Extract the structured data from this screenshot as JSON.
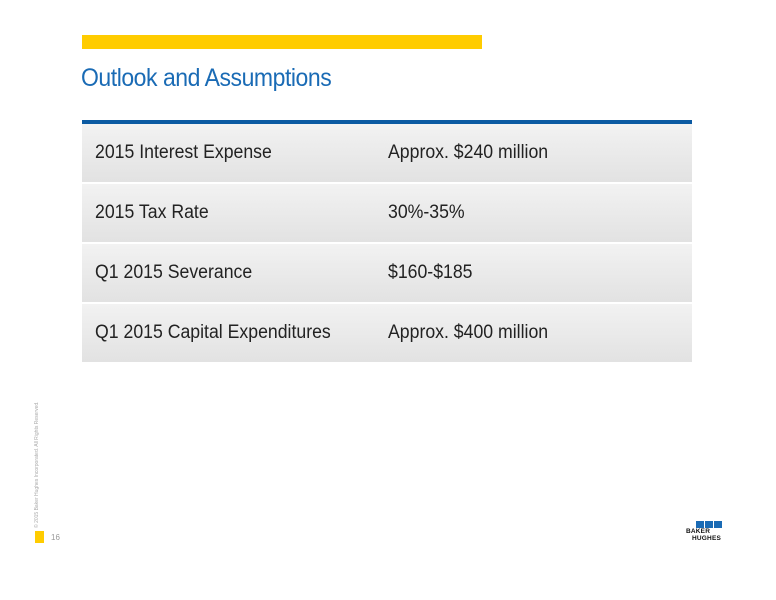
{
  "slide": {
    "title": "Outlook and Assumptions",
    "page_number": "16",
    "copyright": "© 2015 Baker Hughes Incorporated. All Rights Reserved."
  },
  "table": {
    "rows": [
      {
        "label": "2015 Interest Expense",
        "value": "Approx. $240 million"
      },
      {
        "label": "2015 Tax Rate",
        "value": "30%-35%"
      },
      {
        "label": "Q1 2015 Severance",
        "value": "$160-$185"
      },
      {
        "label": "Q1 2015 Capital Expenditures",
        "value": "Approx. $400 million"
      }
    ]
  },
  "logo": {
    "line1": "BAKER",
    "line2": "HUGHES"
  },
  "colors": {
    "accent": "#ffcc00",
    "brand_blue": "#1a6bb5",
    "rule_blue": "#0b5aa2"
  }
}
